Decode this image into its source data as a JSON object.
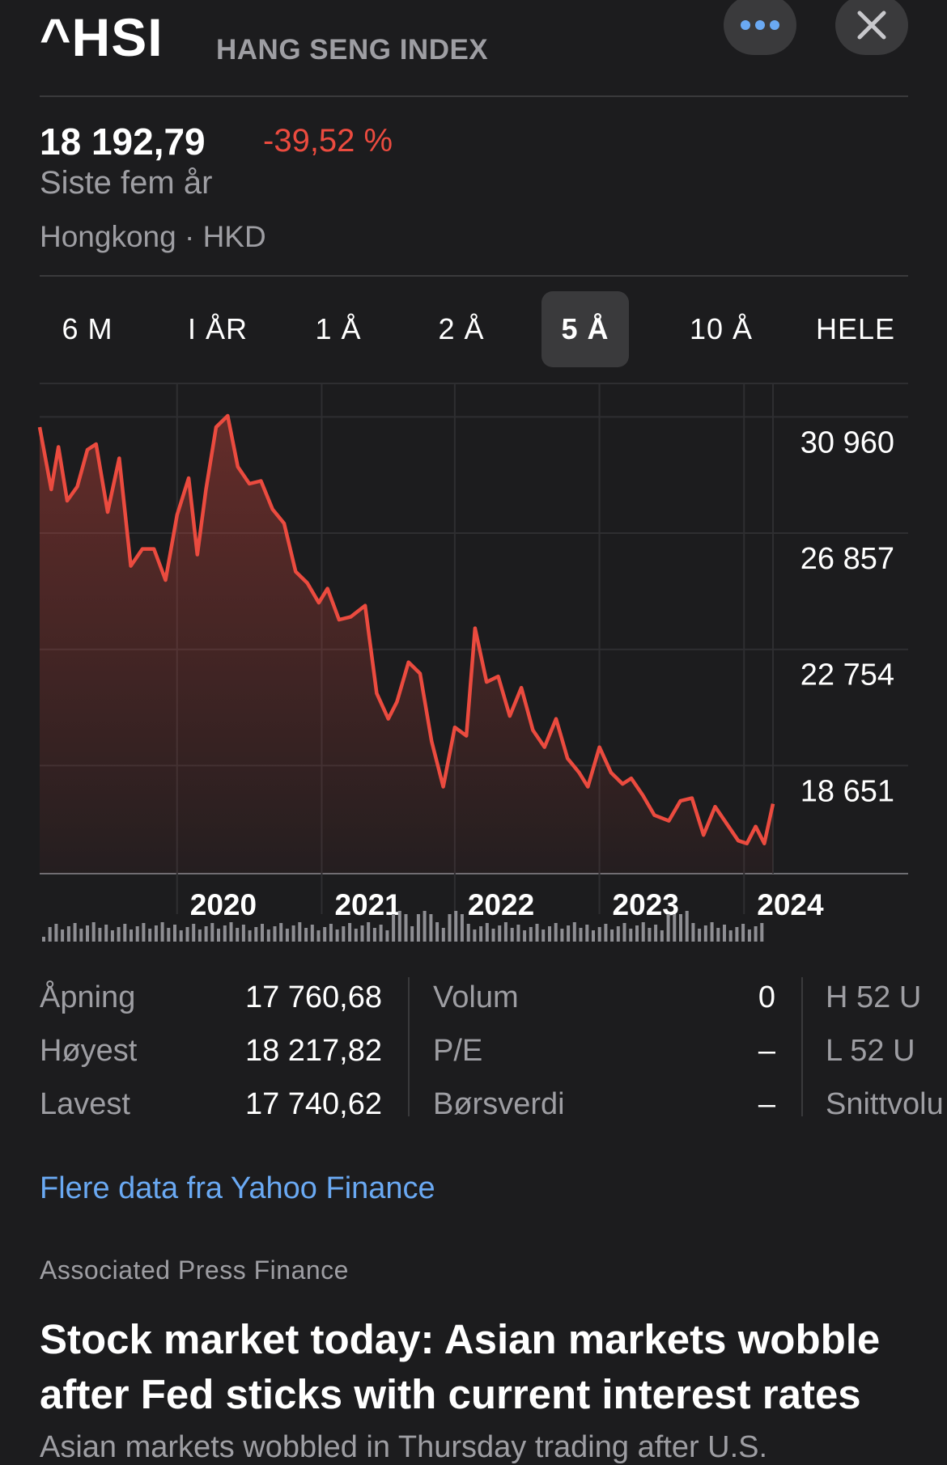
{
  "header": {
    "symbol": "^HSI",
    "name": "HANG SENG INDEX",
    "more_icon": "ellipsis-icon",
    "close_icon": "close-icon"
  },
  "quote": {
    "price": "18 192,79",
    "change": "-39,52 %",
    "period": "Siste fem år",
    "exchange": "Hongkong · HKD"
  },
  "ranges": [
    "6 M",
    "I ÅR",
    "1 Å",
    "2 Å",
    "5 Å",
    "10 Å",
    "HELE"
  ],
  "selected_range": "5 Å",
  "colors": {
    "accent": "#eb4b3f",
    "link": "#6aa9f3",
    "background": "#1c1c1e"
  },
  "chart_data": {
    "type": "area",
    "y_ticks": [
      "30 960",
      "26 857",
      "22 754",
      "18 651"
    ],
    "x_ticks": [
      "2020",
      "2021",
      "2022",
      "2023",
      "2024"
    ],
    "ylim": [
      14548,
      31000
    ],
    "grid": true,
    "x": [
      2019.05,
      2019.13,
      2019.18,
      2019.24,
      2019.31,
      2019.38,
      2019.44,
      2019.52,
      2019.6,
      2019.68,
      2019.76,
      2019.84,
      2019.92,
      2020.0,
      2020.08,
      2020.14,
      2020.2,
      2020.27,
      2020.35,
      2020.42,
      2020.5,
      2020.58,
      2020.66,
      2020.74,
      2020.82,
      2020.9,
      2020.98,
      2021.04,
      2021.12,
      2021.2,
      2021.3,
      2021.38,
      2021.46,
      2021.52,
      2021.6,
      2021.68,
      2021.76,
      2021.84,
      2021.92,
      2022.0,
      2022.06,
      2022.14,
      2022.22,
      2022.3,
      2022.38,
      2022.46,
      2022.54,
      2022.62,
      2022.7,
      2022.78,
      2022.84,
      2022.92,
      2023.0,
      2023.08,
      2023.14,
      2023.22,
      2023.3,
      2023.4,
      2023.48,
      2023.56,
      2023.64,
      2023.72,
      2023.8,
      2023.88,
      2023.94,
      2024.0,
      2024.06,
      2024.12
    ],
    "values": [
      30600,
      28400,
      29900,
      28000,
      28500,
      29800,
      30000,
      27600,
      29500,
      25700,
      26300,
      26300,
      25200,
      27500,
      28800,
      26100,
      28400,
      30600,
      31000,
      29200,
      28600,
      28700,
      27700,
      27200,
      25500,
      25100,
      24400,
      24900,
      23800,
      23900,
      24300,
      21200,
      20300,
      20900,
      22300,
      21900,
      19500,
      17900,
      20000,
      19700,
      23500,
      21600,
      21800,
      20400,
      21400,
      19900,
      19300,
      20300,
      18900,
      18400,
      17900,
      19300,
      18400,
      18000,
      18200,
      17600,
      16900,
      16700,
      17400,
      17500,
      16200,
      17200,
      16600,
      16000,
      15900,
      16500,
      15900,
      17300
    ]
  },
  "stats": {
    "col1": [
      {
        "label": "Åpning",
        "value": "17 760,68"
      },
      {
        "label": "Høyest",
        "value": "18 217,82"
      },
      {
        "label": "Lavest",
        "value": "17 740,62"
      }
    ],
    "col2": [
      {
        "label": "Volum",
        "value": "0"
      },
      {
        "label": "P/E",
        "value": "–"
      },
      {
        "label": "Børsverdi",
        "value": "–"
      }
    ],
    "col3": [
      {
        "label": "H 52 U"
      },
      {
        "label": "L 52 U"
      },
      {
        "label": "Snittvolu"
      }
    ]
  },
  "more_link": "Flere data fra Yahoo Finance",
  "news": {
    "source": "Associated Press Finance",
    "headline": "Stock market today: Asian markets wobble after Fed sticks with current interest rates",
    "snippet": "Asian markets wobbled in Thursday trading after U.S."
  }
}
